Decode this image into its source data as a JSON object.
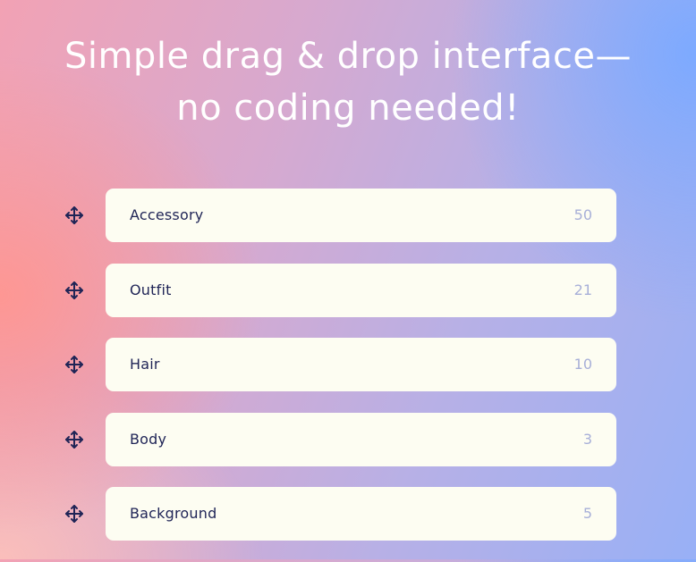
{
  "headline": {
    "line1": "Simple drag & drop interface—",
    "line2": "no coding needed!"
  },
  "icons": {
    "handle": "drag-move-icon"
  },
  "colors": {
    "card_background": "#fdfdf2",
    "label_text": "#1f2456",
    "count_text": "#a7afd8",
    "headline_text": "#ffffff"
  },
  "layers": [
    {
      "label": "Accessory",
      "count": "50"
    },
    {
      "label": "Outfit",
      "count": "21"
    },
    {
      "label": "Hair",
      "count": "10"
    },
    {
      "label": "Body",
      "count": "3"
    },
    {
      "label": "Background",
      "count": "5"
    }
  ]
}
